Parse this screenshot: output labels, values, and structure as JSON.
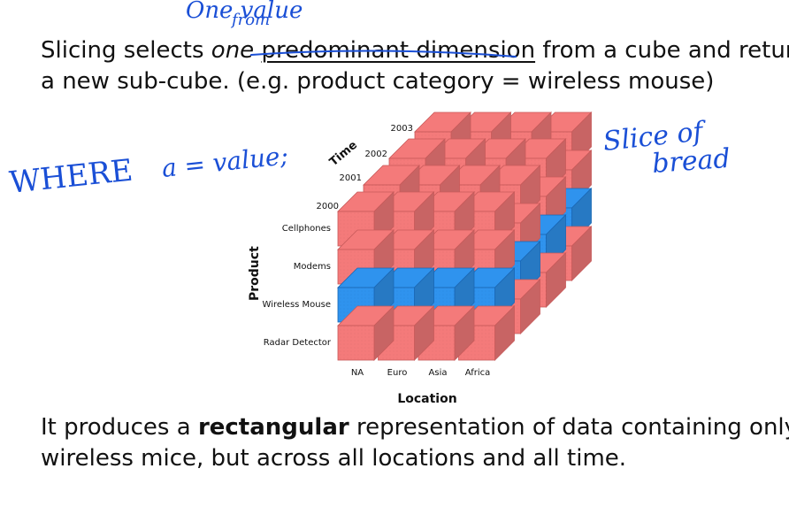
{
  "text": {
    "line1_a": "Slicing selects ",
    "line1_em": "one",
    "line1_b": " ",
    "line1_u": "predominant dimension",
    "line1_c": " from a cube and returns",
    "line2": "a new sub-cube. (e.g. product category = wireless mouse)",
    "line3_a": "It produces a ",
    "line3_b": "rectangular",
    "line3_c": "  representation of data containing only",
    "line4": "wireless mice, but across all locations and all time."
  },
  "cube": {
    "time_axis": "Time",
    "years": [
      "2000",
      "2001",
      "2002",
      "2003"
    ],
    "product_axis": "Product",
    "products": [
      "Cellphones",
      "Modems",
      "Wireless Mouse",
      "Radar Detector"
    ],
    "location_axis": "Location",
    "locations": [
      "NA",
      "Euro",
      "Asia",
      "Africa"
    ],
    "highlighted_product": "Wireless Mouse",
    "colors": {
      "red_face": "#f47a7a",
      "red_edge": "#c75a5a",
      "blue_face": "#2f93ee",
      "blue_edge": "#1a67b4"
    }
  },
  "annotations": {
    "where": "WHERE",
    "cond": "a = value;",
    "slice1": "Slice of",
    "slice2": "bread",
    "top1": "One value",
    "top2": "from"
  }
}
